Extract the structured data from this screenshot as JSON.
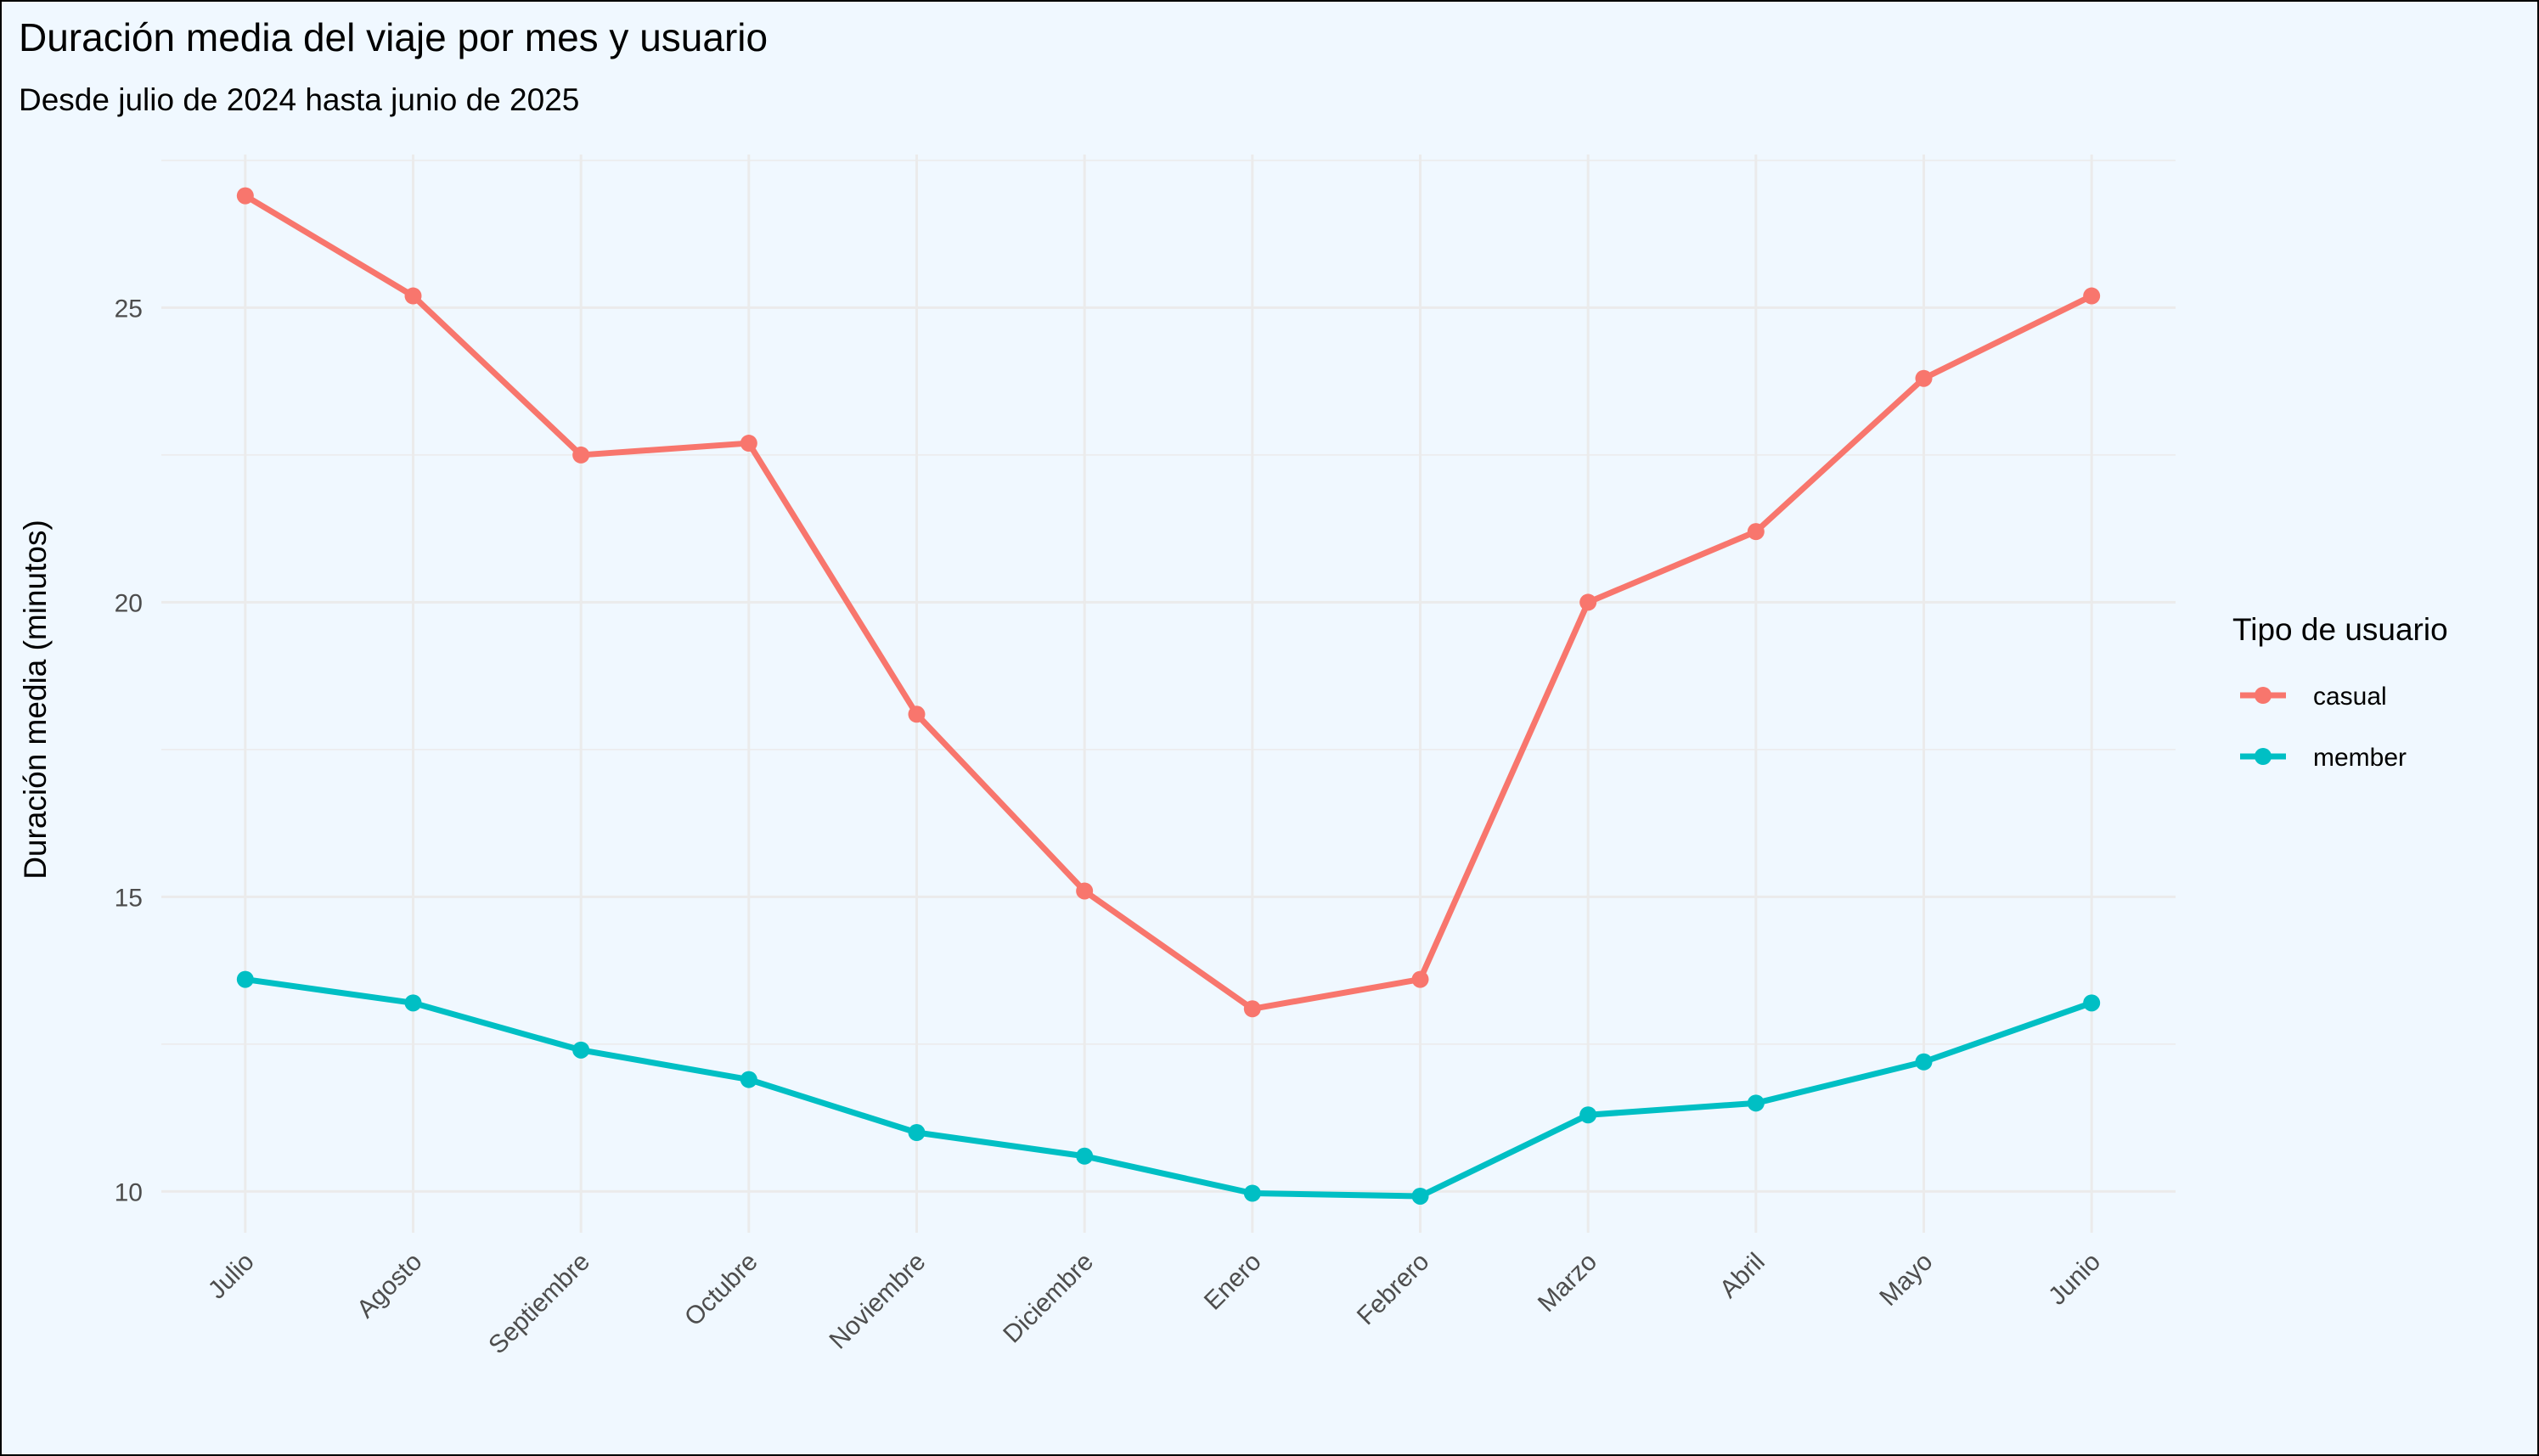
{
  "chart_data": {
    "type": "line",
    "title": "Duración media del viaje por mes y usuario",
    "subtitle": "Desde julio de 2024 hasta junio de 2025",
    "xlabel": "",
    "ylabel": "Duración media (minutos)",
    "categories": [
      "Julio",
      "Agosto",
      "Septiembre",
      "Octubre",
      "Noviembre",
      "Diciembre",
      "Enero",
      "Febrero",
      "Marzo",
      "Abril",
      "Mayo",
      "Junio"
    ],
    "yticks": [
      10,
      15,
      20,
      25
    ],
    "ylim": [
      9.3,
      27.6
    ],
    "grid": true,
    "legend": {
      "title": "Tipo de usuario",
      "placement": "right"
    },
    "series": [
      {
        "name": "casual",
        "color": "#f8766d",
        "values": [
          26.9,
          25.2,
          22.5,
          22.7,
          18.1,
          15.1,
          13.1,
          13.6,
          20.0,
          21.2,
          23.8,
          25.2
        ]
      },
      {
        "name": "member",
        "color": "#00bfc4",
        "values": [
          13.6,
          13.2,
          12.4,
          11.9,
          11.0,
          10.6,
          9.97,
          9.92,
          11.3,
          11.5,
          12.2,
          13.2
        ]
      }
    ]
  }
}
